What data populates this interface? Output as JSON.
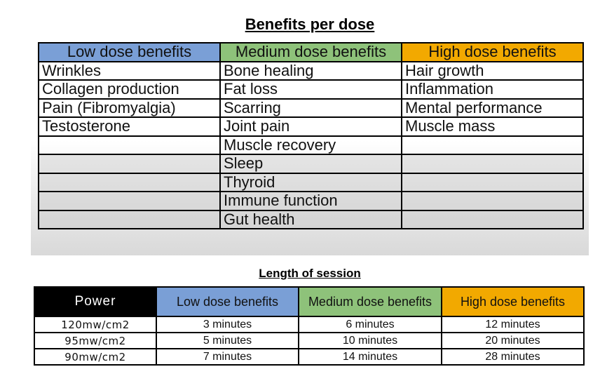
{
  "benefits_table": {
    "title": "Benefits per dose",
    "headers": [
      "Low dose benefits",
      "Medium dose benefits",
      "High dose benefits"
    ],
    "rows": [
      [
        "Wrinkles",
        "Bone healing",
        "Hair growth"
      ],
      [
        "Collagen production",
        "Fat loss",
        "Inflammation"
      ],
      [
        "Pain (Fibromyalgia)",
        "Scarring",
        "Mental performance"
      ],
      [
        "Testosterone",
        "Joint pain",
        "Muscle mass"
      ],
      [
        "",
        "Muscle recovery",
        ""
      ],
      [
        "",
        "Sleep",
        ""
      ],
      [
        "",
        "Thyroid",
        ""
      ],
      [
        "",
        "Immune function",
        ""
      ],
      [
        "",
        "Gut health",
        ""
      ]
    ]
  },
  "session_table": {
    "title": "Length of session",
    "headers": [
      "Power",
      "Low dose benefits",
      "Medium dose benefits",
      "High dose benefits"
    ],
    "rows": [
      [
        "120mw/cm2",
        "3 minutes",
        "6 minutes",
        "12 minutes"
      ],
      [
        "95mw/cm2",
        "5 minutes",
        "10 minutes",
        "20 minutes"
      ],
      [
        "90mw/cm2",
        "7 minutes",
        "14 minutes",
        "28 minutes"
      ]
    ]
  },
  "colors": {
    "low": "#7a9fd6",
    "medium": "#8ec27a",
    "high": "#f2a900",
    "power_header": "#000000"
  }
}
